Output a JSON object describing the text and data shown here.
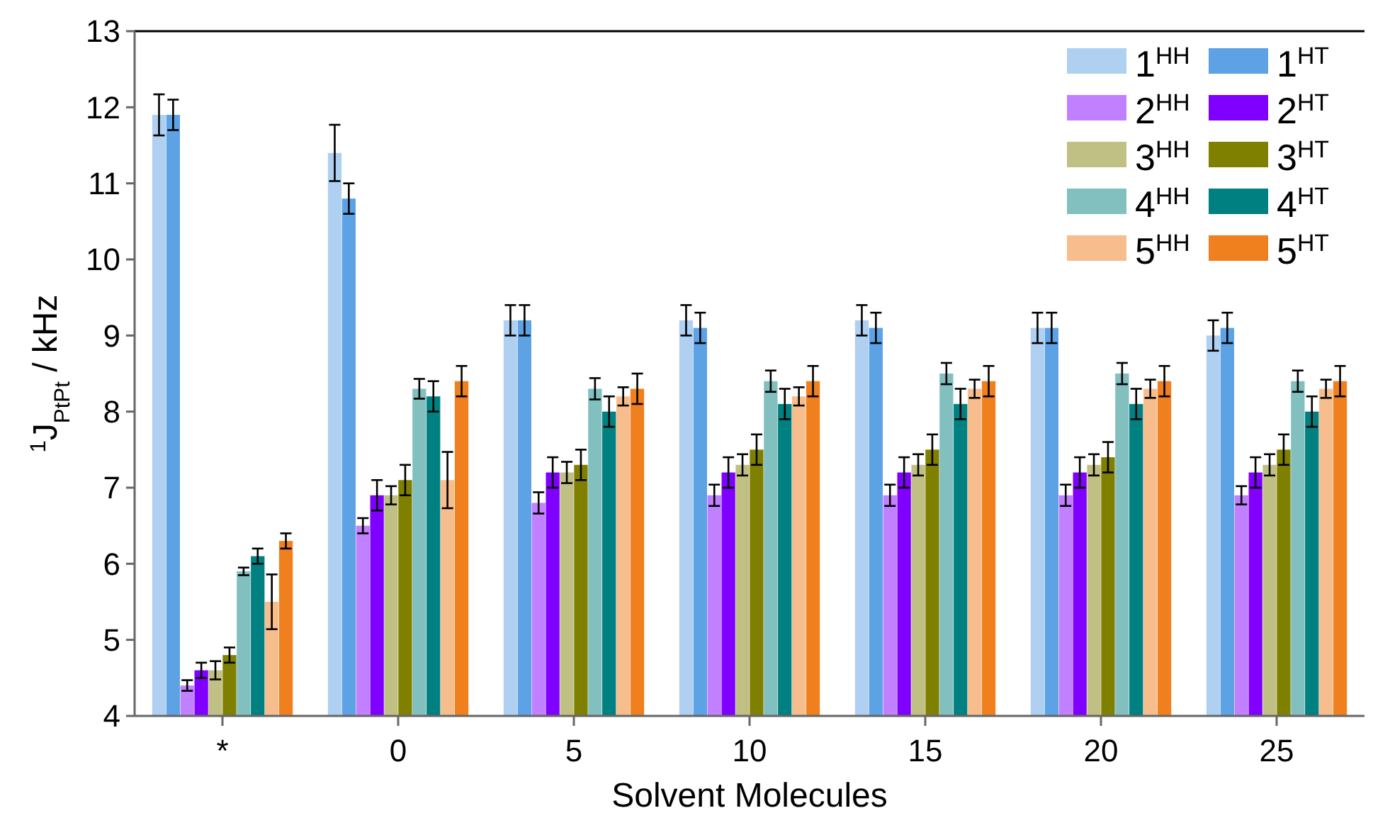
{
  "chart_data": {
    "type": "bar",
    "xlabel": "Solvent Molecules",
    "ylabel": "$^{1}$J$_{PtPt}$ / kHz",
    "categories": [
      "*",
      "0",
      "5",
      "10",
      "15",
      "20",
      "25"
    ],
    "ylim": [
      4,
      13
    ],
    "yticks": [
      4,
      5,
      6,
      7,
      8,
      9,
      10,
      11,
      12,
      13
    ],
    "grid": false,
    "legend": "top right",
    "series": [
      {
        "name": "1$^{HH}$",
        "color": "#b0d0f2",
        "values": [
          11.9,
          11.4,
          9.2,
          9.2,
          9.2,
          9.1,
          9.0
        ],
        "errors": [
          0.27,
          0.37,
          0.2,
          0.2,
          0.2,
          0.2,
          0.2
        ]
      },
      {
        "name": "1$^{HT}$",
        "color": "#5ea2e6",
        "values": [
          11.9,
          10.8,
          9.2,
          9.1,
          9.1,
          9.1,
          9.1
        ],
        "errors": [
          0.2,
          0.2,
          0.2,
          0.2,
          0.2,
          0.2,
          0.2
        ]
      },
      {
        "name": "2$^{HH}$",
        "color": "#c080ff",
        "values": [
          4.4,
          6.5,
          6.8,
          6.9,
          6.9,
          6.9,
          6.9
        ],
        "errors": [
          0.07,
          0.1,
          0.14,
          0.14,
          0.14,
          0.14,
          0.12
        ]
      },
      {
        "name": "2$^{HT}$",
        "color": "#8000ff",
        "values": [
          4.6,
          6.9,
          7.2,
          7.2,
          7.2,
          7.2,
          7.2
        ],
        "errors": [
          0.1,
          0.2,
          0.2,
          0.2,
          0.2,
          0.2,
          0.2
        ]
      },
      {
        "name": "3$^{HH}$",
        "color": "#c0c084",
        "values": [
          4.6,
          6.9,
          7.2,
          7.3,
          7.3,
          7.3,
          7.3
        ],
        "errors": [
          0.12,
          0.12,
          0.14,
          0.14,
          0.14,
          0.14,
          0.14
        ]
      },
      {
        "name": "3$^{HT}$",
        "color": "#808000",
        "values": [
          4.8,
          7.1,
          7.3,
          7.5,
          7.5,
          7.4,
          7.5
        ],
        "errors": [
          0.1,
          0.2,
          0.2,
          0.2,
          0.2,
          0.2,
          0.2
        ]
      },
      {
        "name": "4$^{HH}$",
        "color": "#82bfbf",
        "values": [
          5.9,
          8.3,
          8.3,
          8.4,
          8.5,
          8.5,
          8.4
        ],
        "errors": [
          0.05,
          0.13,
          0.14,
          0.14,
          0.14,
          0.14,
          0.14
        ]
      },
      {
        "name": "4$^{HT}$",
        "color": "#008080",
        "values": [
          6.1,
          8.2,
          8.0,
          8.1,
          8.1,
          8.1,
          8.0
        ],
        "errors": [
          0.1,
          0.2,
          0.2,
          0.2,
          0.2,
          0.2,
          0.2
        ]
      },
      {
        "name": "5$^{HH}$",
        "color": "#f7bd8d",
        "values": [
          5.5,
          7.1,
          8.2,
          8.2,
          8.3,
          8.3,
          8.3
        ],
        "errors": [
          0.36,
          0.37,
          0.12,
          0.12,
          0.12,
          0.12,
          0.12
        ]
      },
      {
        "name": "5$^{HT}$",
        "color": "#f0801e",
        "values": [
          6.3,
          8.4,
          8.3,
          8.4,
          8.4,
          8.4,
          8.4
        ],
        "errors": [
          0.1,
          0.2,
          0.2,
          0.2,
          0.2,
          0.2,
          0.2
        ]
      }
    ]
  }
}
